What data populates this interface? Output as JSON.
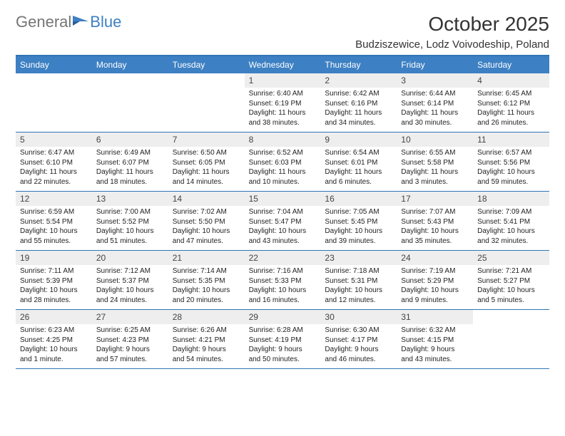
{
  "brand": {
    "part1": "General",
    "part2": "Blue"
  },
  "title": "October 2025",
  "location": "Budziszewice, Lodz Voivodeship, Poland",
  "colors": {
    "accent": "#3d80c3",
    "border": "#2f74b5",
    "daybar": "#eeeeee",
    "text": "#222222",
    "header_text": "#ffffff",
    "bg": "#ffffff",
    "logo_gray": "#757575"
  },
  "dow": [
    "Sunday",
    "Monday",
    "Tuesday",
    "Wednesday",
    "Thursday",
    "Friday",
    "Saturday"
  ],
  "weeks": [
    [
      null,
      null,
      null,
      {
        "n": "1",
        "sr": "Sunrise: 6:40 AM",
        "ss": "Sunset: 6:19 PM",
        "d1": "Daylight: 11 hours",
        "d2": "and 38 minutes."
      },
      {
        "n": "2",
        "sr": "Sunrise: 6:42 AM",
        "ss": "Sunset: 6:16 PM",
        "d1": "Daylight: 11 hours",
        "d2": "and 34 minutes."
      },
      {
        "n": "3",
        "sr": "Sunrise: 6:44 AM",
        "ss": "Sunset: 6:14 PM",
        "d1": "Daylight: 11 hours",
        "d2": "and 30 minutes."
      },
      {
        "n": "4",
        "sr": "Sunrise: 6:45 AM",
        "ss": "Sunset: 6:12 PM",
        "d1": "Daylight: 11 hours",
        "d2": "and 26 minutes."
      }
    ],
    [
      {
        "n": "5",
        "sr": "Sunrise: 6:47 AM",
        "ss": "Sunset: 6:10 PM",
        "d1": "Daylight: 11 hours",
        "d2": "and 22 minutes."
      },
      {
        "n": "6",
        "sr": "Sunrise: 6:49 AM",
        "ss": "Sunset: 6:07 PM",
        "d1": "Daylight: 11 hours",
        "d2": "and 18 minutes."
      },
      {
        "n": "7",
        "sr": "Sunrise: 6:50 AM",
        "ss": "Sunset: 6:05 PM",
        "d1": "Daylight: 11 hours",
        "d2": "and 14 minutes."
      },
      {
        "n": "8",
        "sr": "Sunrise: 6:52 AM",
        "ss": "Sunset: 6:03 PM",
        "d1": "Daylight: 11 hours",
        "d2": "and 10 minutes."
      },
      {
        "n": "9",
        "sr": "Sunrise: 6:54 AM",
        "ss": "Sunset: 6:01 PM",
        "d1": "Daylight: 11 hours",
        "d2": "and 6 minutes."
      },
      {
        "n": "10",
        "sr": "Sunrise: 6:55 AM",
        "ss": "Sunset: 5:58 PM",
        "d1": "Daylight: 11 hours",
        "d2": "and 3 minutes."
      },
      {
        "n": "11",
        "sr": "Sunrise: 6:57 AM",
        "ss": "Sunset: 5:56 PM",
        "d1": "Daylight: 10 hours",
        "d2": "and 59 minutes."
      }
    ],
    [
      {
        "n": "12",
        "sr": "Sunrise: 6:59 AM",
        "ss": "Sunset: 5:54 PM",
        "d1": "Daylight: 10 hours",
        "d2": "and 55 minutes."
      },
      {
        "n": "13",
        "sr": "Sunrise: 7:00 AM",
        "ss": "Sunset: 5:52 PM",
        "d1": "Daylight: 10 hours",
        "d2": "and 51 minutes."
      },
      {
        "n": "14",
        "sr": "Sunrise: 7:02 AM",
        "ss": "Sunset: 5:50 PM",
        "d1": "Daylight: 10 hours",
        "d2": "and 47 minutes."
      },
      {
        "n": "15",
        "sr": "Sunrise: 7:04 AM",
        "ss": "Sunset: 5:47 PM",
        "d1": "Daylight: 10 hours",
        "d2": "and 43 minutes."
      },
      {
        "n": "16",
        "sr": "Sunrise: 7:05 AM",
        "ss": "Sunset: 5:45 PM",
        "d1": "Daylight: 10 hours",
        "d2": "and 39 minutes."
      },
      {
        "n": "17",
        "sr": "Sunrise: 7:07 AM",
        "ss": "Sunset: 5:43 PM",
        "d1": "Daylight: 10 hours",
        "d2": "and 35 minutes."
      },
      {
        "n": "18",
        "sr": "Sunrise: 7:09 AM",
        "ss": "Sunset: 5:41 PM",
        "d1": "Daylight: 10 hours",
        "d2": "and 32 minutes."
      }
    ],
    [
      {
        "n": "19",
        "sr": "Sunrise: 7:11 AM",
        "ss": "Sunset: 5:39 PM",
        "d1": "Daylight: 10 hours",
        "d2": "and 28 minutes."
      },
      {
        "n": "20",
        "sr": "Sunrise: 7:12 AM",
        "ss": "Sunset: 5:37 PM",
        "d1": "Daylight: 10 hours",
        "d2": "and 24 minutes."
      },
      {
        "n": "21",
        "sr": "Sunrise: 7:14 AM",
        "ss": "Sunset: 5:35 PM",
        "d1": "Daylight: 10 hours",
        "d2": "and 20 minutes."
      },
      {
        "n": "22",
        "sr": "Sunrise: 7:16 AM",
        "ss": "Sunset: 5:33 PM",
        "d1": "Daylight: 10 hours",
        "d2": "and 16 minutes."
      },
      {
        "n": "23",
        "sr": "Sunrise: 7:18 AM",
        "ss": "Sunset: 5:31 PM",
        "d1": "Daylight: 10 hours",
        "d2": "and 12 minutes."
      },
      {
        "n": "24",
        "sr": "Sunrise: 7:19 AM",
        "ss": "Sunset: 5:29 PM",
        "d1": "Daylight: 10 hours",
        "d2": "and 9 minutes."
      },
      {
        "n": "25",
        "sr": "Sunrise: 7:21 AM",
        "ss": "Sunset: 5:27 PM",
        "d1": "Daylight: 10 hours",
        "d2": "and 5 minutes."
      }
    ],
    [
      {
        "n": "26",
        "sr": "Sunrise: 6:23 AM",
        "ss": "Sunset: 4:25 PM",
        "d1": "Daylight: 10 hours",
        "d2": "and 1 minute."
      },
      {
        "n": "27",
        "sr": "Sunrise: 6:25 AM",
        "ss": "Sunset: 4:23 PM",
        "d1": "Daylight: 9 hours",
        "d2": "and 57 minutes."
      },
      {
        "n": "28",
        "sr": "Sunrise: 6:26 AM",
        "ss": "Sunset: 4:21 PM",
        "d1": "Daylight: 9 hours",
        "d2": "and 54 minutes."
      },
      {
        "n": "29",
        "sr": "Sunrise: 6:28 AM",
        "ss": "Sunset: 4:19 PM",
        "d1": "Daylight: 9 hours",
        "d2": "and 50 minutes."
      },
      {
        "n": "30",
        "sr": "Sunrise: 6:30 AM",
        "ss": "Sunset: 4:17 PM",
        "d1": "Daylight: 9 hours",
        "d2": "and 46 minutes."
      },
      {
        "n": "31",
        "sr": "Sunrise: 6:32 AM",
        "ss": "Sunset: 4:15 PM",
        "d1": "Daylight: 9 hours",
        "d2": "and 43 minutes."
      },
      null
    ]
  ]
}
